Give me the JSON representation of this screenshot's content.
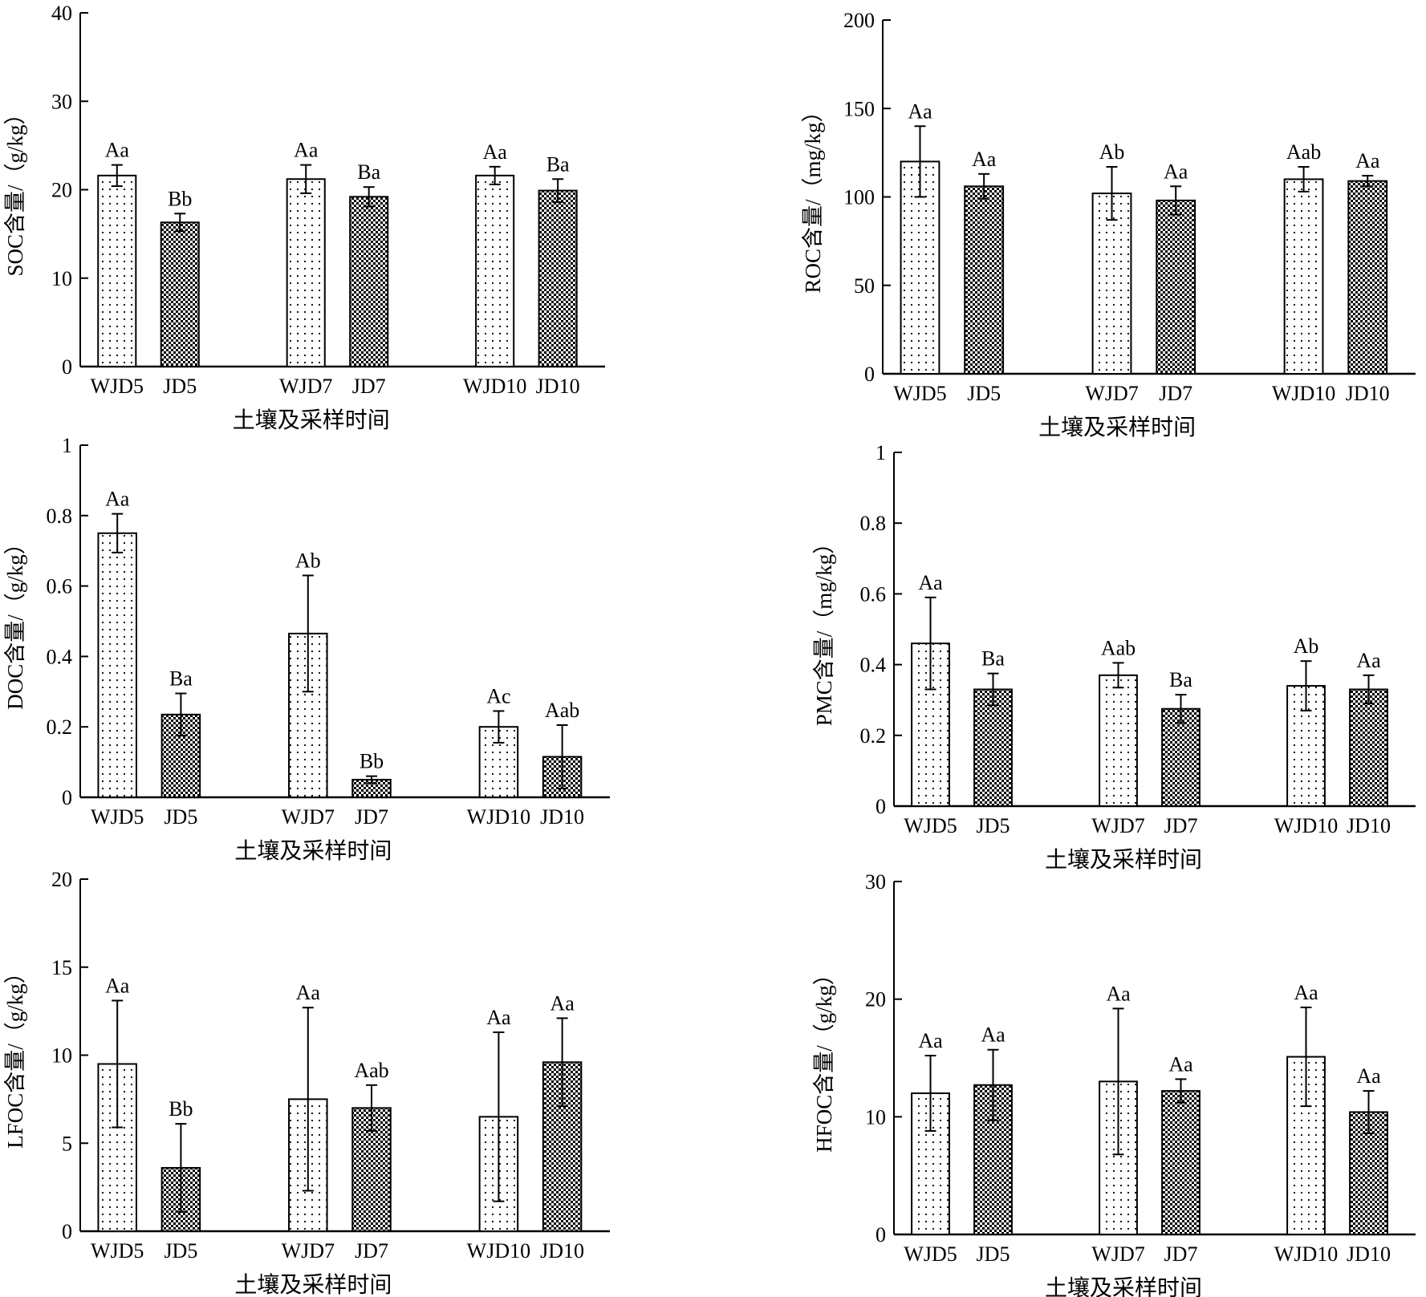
{
  "chart_data": [
    {
      "type": "bar",
      "ylabel": "SOC含量/（g/kg）",
      "xlabel": "土壤及采样时间",
      "ylim": [
        0,
        40
      ],
      "yticks": [
        0,
        10,
        20,
        30,
        40
      ],
      "categories": [
        "WJD5",
        "JD5",
        "WJD7",
        "JD7",
        "WJD10",
        "JD10"
      ],
      "values": [
        21.6,
        16.3,
        21.2,
        19.2,
        21.6,
        19.9
      ],
      "errors": [
        1.2,
        1.0,
        1.6,
        1.1,
        1.0,
        1.3
      ],
      "labels": [
        "Aa",
        "Bb",
        "Aa",
        "Ba",
        "Aa",
        "Ba"
      ]
    },
    {
      "type": "bar",
      "ylabel": "ROC含量/（mg/kg）",
      "xlabel": "土壤及采样时间",
      "ylim": [
        0,
        200
      ],
      "yticks": [
        0,
        50,
        100,
        150,
        200
      ],
      "categories": [
        "WJD5",
        "JD5",
        "WJD7",
        "JD7",
        "WJD10",
        "JD10"
      ],
      "values": [
        120,
        106,
        102,
        98,
        110,
        109
      ],
      "errors": [
        20,
        7,
        15,
        8,
        7,
        3
      ],
      "labels": [
        "Aa",
        "Aa",
        "Ab",
        "Aa",
        "Aab",
        "Aa"
      ]
    },
    {
      "type": "bar",
      "ylabel": "DOC含量/（g/kg）",
      "xlabel": "土壤及采样时间",
      "ylim": [
        0,
        1.0
      ],
      "yticks": [
        0,
        0.2,
        0.4,
        0.6,
        0.8,
        1.0
      ],
      "categories": [
        "WJD5",
        "JD5",
        "WJD7",
        "JD7",
        "WJD10",
        "JD10"
      ],
      "values": [
        0.75,
        0.235,
        0.465,
        0.05,
        0.2,
        0.115
      ],
      "errors": [
        0.055,
        0.06,
        0.165,
        0.01,
        0.045,
        0.09
      ],
      "labels": [
        "Aa",
        "Ba",
        "Ab",
        "Bb",
        "Ac",
        "Aab"
      ]
    },
    {
      "type": "bar",
      "ylabel": "PMC含量/（mg/kg）",
      "xlabel": "土壤及采样时间",
      "ylim": [
        0,
        1.0
      ],
      "yticks": [
        0,
        0.2,
        0.4,
        0.6,
        0.8,
        1.0
      ],
      "categories": [
        "WJD5",
        "JD5",
        "WJD7",
        "JD7",
        "WJD10",
        "JD10"
      ],
      "values": [
        0.46,
        0.33,
        0.37,
        0.275,
        0.34,
        0.33
      ],
      "errors": [
        0.13,
        0.045,
        0.035,
        0.04,
        0.07,
        0.04
      ],
      "labels": [
        "Aa",
        "Ba",
        "Aab",
        "Ba",
        "Ab",
        "Aa"
      ]
    },
    {
      "type": "bar",
      "ylabel": "LFOC含量/（g/kg）",
      "xlabel": "土壤及采样时间",
      "ylim": [
        0,
        20
      ],
      "yticks": [
        0,
        5,
        10,
        15,
        20
      ],
      "categories": [
        "WJD5",
        "JD5",
        "WJD7",
        "JD7",
        "WJD10",
        "JD10"
      ],
      "values": [
        9.5,
        3.6,
        7.5,
        7.0,
        6.5,
        9.6
      ],
      "errors": [
        3.6,
        2.5,
        5.2,
        1.3,
        4.8,
        2.5
      ],
      "labels": [
        "Aa",
        "Bb",
        "Aa",
        "Aab",
        "Aa",
        "Aa"
      ]
    },
    {
      "type": "bar",
      "ylabel": "HFOC含量/（g/kg）",
      "xlabel": "土壤及采样时间",
      "ylim": [
        0,
        30
      ],
      "yticks": [
        0,
        10,
        20,
        30
      ],
      "categories": [
        "WJD5",
        "JD5",
        "WJD7",
        "JD7",
        "WJD10",
        "JD10"
      ],
      "values": [
        12.0,
        12.7,
        13.0,
        12.2,
        15.1,
        10.4
      ],
      "errors": [
        3.2,
        3.0,
        6.2,
        1.0,
        4.2,
        1.8
      ],
      "labels": [
        "Aa",
        "Aa",
        "Aa",
        "Aa",
        "Aa",
        "Aa"
      ]
    }
  ]
}
